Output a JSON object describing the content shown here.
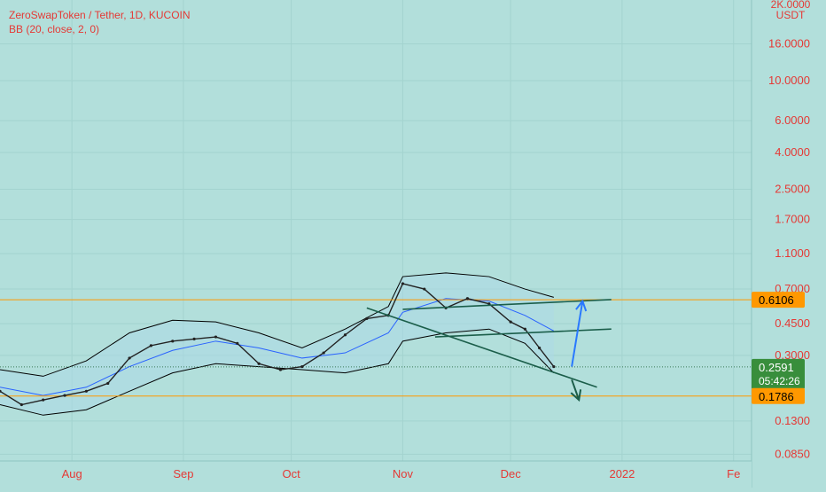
{
  "header": {
    "symbol_line": "ZeroSwapToken / Tether, 1D, KUCOIN",
    "indicator_line": "BB (20, close, 2, 0)"
  },
  "price_axis": {
    "top_partial_label": "2K.0000",
    "currency": "USDT",
    "ticks": [
      "16.0000",
      "10.0000",
      "6.0000",
      "4.0000",
      "2.5000",
      "1.7000",
      "1.1000",
      "0.7000",
      "0.4500",
      "0.3000",
      "0.1300",
      "0.0850"
    ],
    "tick_values": [
      16,
      10,
      6,
      4,
      2.5,
      1.7,
      1.1,
      0.7,
      0.45,
      0.3,
      0.13,
      0.085
    ],
    "scale": "log"
  },
  "time_axis": {
    "labels": [
      "Aug",
      "Sep",
      "Oct",
      "Nov",
      "Dec",
      "2022",
      "Fe"
    ],
    "dates": [
      "2021-08-01",
      "2021-09-01",
      "2021-10-01",
      "2021-11-01",
      "2021-12-01",
      "2022-01-01",
      "2022-02-01"
    ]
  },
  "price_badges": {
    "resistance": "0.6106",
    "current_price": "0.2591",
    "countdown": "05:42:26",
    "support": "0.1786"
  },
  "colors": {
    "background": "#b2dfdb",
    "text_red": "#e53935",
    "level_orange": "#ff9800",
    "current_green": "#388e3c",
    "band_line": "#000000",
    "basis_line": "#2962ff",
    "band_fill": "rgba(173,216,230,0.55)",
    "trend_line": "#1b5e4a",
    "arrow_up": "#2979ff",
    "arrow_down": "#1b5e4a"
  },
  "chart_data": {
    "type": "line",
    "x_type": "date",
    "y_scale": "log",
    "ylim": [
      0.078,
      28
    ],
    "xlim": [
      "2021-07-12",
      "2022-02-06"
    ],
    "series": [
      {
        "name": "ZeroSwapToken / Tether",
        "x": [
          "2021-07-12",
          "2021-07-18",
          "2021-07-24",
          "2021-07-30",
          "2021-08-05",
          "2021-08-11",
          "2021-08-17",
          "2021-08-23",
          "2021-08-29",
          "2021-09-04",
          "2021-09-10",
          "2021-09-16",
          "2021-09-22",
          "2021-09-28",
          "2021-10-04",
          "2021-10-10",
          "2021-10-16",
          "2021-10-22",
          "2021-10-28",
          "2021-11-01",
          "2021-11-07",
          "2021-11-13",
          "2021-11-19",
          "2021-11-25",
          "2021-12-01",
          "2021-12-05",
          "2021-12-09",
          "2021-12-13"
        ],
        "values": [
          0.19,
          0.16,
          0.17,
          0.18,
          0.19,
          0.21,
          0.29,
          0.34,
          0.36,
          0.37,
          0.38,
          0.35,
          0.27,
          0.25,
          0.26,
          0.31,
          0.39,
          0.48,
          0.5,
          0.75,
          0.7,
          0.55,
          0.62,
          0.58,
          0.46,
          0.42,
          0.33,
          0.26
        ]
      },
      {
        "name": "BB upper",
        "x": [
          "2021-07-12",
          "2021-07-24",
          "2021-08-05",
          "2021-08-17",
          "2021-08-29",
          "2021-09-10",
          "2021-09-22",
          "2021-10-04",
          "2021-10-16",
          "2021-10-28",
          "2021-11-01",
          "2021-11-13",
          "2021-11-25",
          "2021-12-05",
          "2021-12-13"
        ],
        "values": [
          0.25,
          0.23,
          0.28,
          0.4,
          0.47,
          0.46,
          0.4,
          0.33,
          0.42,
          0.56,
          0.82,
          0.86,
          0.82,
          0.7,
          0.63
        ]
      },
      {
        "name": "BB basis",
        "x": [
          "2021-07-12",
          "2021-07-24",
          "2021-08-05",
          "2021-08-17",
          "2021-08-29",
          "2021-09-10",
          "2021-09-22",
          "2021-10-04",
          "2021-10-16",
          "2021-10-28",
          "2021-11-01",
          "2021-11-13",
          "2021-11-25",
          "2021-12-05",
          "2021-12-13"
        ],
        "values": [
          0.2,
          0.18,
          0.2,
          0.26,
          0.32,
          0.36,
          0.33,
          0.29,
          0.31,
          0.4,
          0.52,
          0.62,
          0.6,
          0.5,
          0.41
        ]
      },
      {
        "name": "BB lower",
        "x": [
          "2021-07-12",
          "2021-07-24",
          "2021-08-05",
          "2021-08-17",
          "2021-08-29",
          "2021-09-10",
          "2021-09-22",
          "2021-10-04",
          "2021-10-16",
          "2021-10-28",
          "2021-11-01",
          "2021-11-13",
          "2021-11-25",
          "2021-12-05",
          "2021-12-13"
        ],
        "values": [
          0.16,
          0.14,
          0.15,
          0.19,
          0.24,
          0.27,
          0.26,
          0.25,
          0.24,
          0.27,
          0.36,
          0.4,
          0.42,
          0.35,
          0.24
        ]
      }
    ],
    "levels": [
      0.6106,
      0.2591,
      0.1786
    ],
    "drawings": [
      {
        "kind": "trendline",
        "x": [
          "2021-11-01",
          "2021-12-29"
        ],
        "y": [
          0.54,
          0.612
        ]
      },
      {
        "kind": "trendline",
        "x": [
          "2021-11-10",
          "2021-12-29"
        ],
        "y": [
          0.38,
          0.42
        ]
      },
      {
        "kind": "trendline",
        "x": [
          "2021-10-22",
          "2021-12-25"
        ],
        "y": [
          0.55,
          0.2
        ]
      },
      {
        "kind": "arrow",
        "x": [
          "2021-12-18",
          "2021-12-21"
        ],
        "y": [
          0.26,
          0.6
        ]
      },
      {
        "kind": "arrow",
        "x": [
          "2021-12-18",
          "2021-12-20"
        ],
        "y": [
          0.22,
          0.17
        ]
      }
    ],
    "grid": true,
    "legend": "top-left"
  }
}
